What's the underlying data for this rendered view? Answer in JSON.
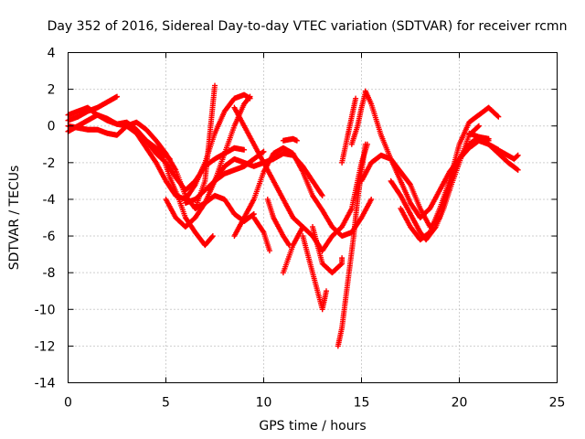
{
  "chart_data": {
    "type": "scatter",
    "title": "Day 352 of 2016, Sidereal Day-to-day VTEC variation (SDTVAR) for receiver rcmn",
    "xlabel": "GPS time / hours",
    "ylabel": "SDTVAR / TECUs",
    "xlim": [
      0,
      25
    ],
    "ylim": [
      -14,
      4
    ],
    "xticks": [
      "0",
      "5",
      "10",
      "15",
      "20",
      "25"
    ],
    "yticks": [
      "4",
      "2",
      "0",
      "-2",
      "-4",
      "-6",
      "-8",
      "-10",
      "-12",
      "-14"
    ],
    "grid": true,
    "marker": "+",
    "color": "#ff0000",
    "series": [
      {
        "points": [
          [
            0,
            0.6
          ],
          [
            0.5,
            0.8
          ],
          [
            1,
            1.0
          ],
          [
            1.5,
            0.6
          ],
          [
            2,
            0.4
          ],
          [
            2.5,
            0.1
          ],
          [
            3,
            0.0
          ],
          [
            3.5,
            -0.4
          ],
          [
            4,
            -1.2
          ],
          [
            4.5,
            -2.0
          ],
          [
            5,
            -3.0
          ],
          [
            5.5,
            -3.8
          ],
          [
            6,
            -4.0
          ],
          [
            6.5,
            -3.2
          ],
          [
            7,
            -2.0
          ],
          [
            7.5,
            -0.4
          ],
          [
            8,
            0.8
          ],
          [
            8.5,
            1.5
          ],
          [
            9,
            1.7
          ],
          [
            9.3,
            1.5
          ]
        ]
      },
      {
        "points": [
          [
            0,
            0.3
          ],
          [
            0.5,
            0.5
          ],
          [
            1,
            0.8
          ],
          [
            1.5,
            1.0
          ],
          [
            2,
            1.3
          ],
          [
            2.5,
            1.6
          ]
        ]
      },
      {
        "points": [
          [
            0,
            -0.3
          ],
          [
            0.5,
            0.0
          ],
          [
            1,
            0.3
          ],
          [
            1.5,
            0.6
          ],
          [
            2,
            0.3
          ],
          [
            2.5,
            0.1
          ],
          [
            3,
            0.2
          ],
          [
            3.5,
            -0.2
          ],
          [
            4,
            -0.8
          ],
          [
            4.5,
            -1.5
          ],
          [
            5,
            -2.0
          ],
          [
            5.5,
            -2.8
          ],
          [
            6,
            -3.5
          ],
          [
            6.5,
            -3.0
          ],
          [
            7,
            -2.2
          ],
          [
            7.5,
            -1.8
          ],
          [
            8,
            -1.5
          ],
          [
            8.5,
            -1.2
          ],
          [
            9,
            -1.3
          ]
        ]
      },
      {
        "points": [
          [
            0,
            0.0
          ],
          [
            0.5,
            -0.1
          ],
          [
            1,
            -0.2
          ],
          [
            1.5,
            -0.2
          ],
          [
            2,
            -0.4
          ],
          [
            2.5,
            -0.5
          ],
          [
            3,
            0.0
          ],
          [
            3.5,
            0.2
          ],
          [
            4,
            -0.2
          ],
          [
            4.5,
            -0.8
          ],
          [
            5,
            -1.5
          ],
          [
            5.5,
            -2.4
          ],
          [
            6,
            -3.8
          ],
          [
            6.5,
            -4.5
          ],
          [
            7,
            -4.2
          ],
          [
            7.5,
            -3.0
          ],
          [
            8,
            -1.5
          ],
          [
            8.5,
            0.0
          ],
          [
            9,
            1.2
          ],
          [
            9.3,
            1.6
          ]
        ]
      },
      {
        "points": [
          [
            4,
            -0.8
          ],
          [
            4.5,
            -1.2
          ],
          [
            5,
            -1.6
          ],
          [
            5.2,
            -1.8
          ]
        ]
      },
      {
        "points": [
          [
            4.2,
            -1.0
          ],
          [
            4.8,
            -1.5
          ],
          [
            5.2,
            -2.8
          ],
          [
            5.6,
            -3.8
          ],
          [
            6,
            -5.0
          ],
          [
            6.5,
            -5.8
          ],
          [
            7,
            -6.5
          ],
          [
            7.4,
            -6.0
          ]
        ]
      },
      {
        "points": [
          [
            5,
            -4.0
          ],
          [
            5.5,
            -5.0
          ],
          [
            6,
            -5.5
          ],
          [
            6.5,
            -5.0
          ],
          [
            7,
            -4.2
          ],
          [
            7.5,
            -3.8
          ],
          [
            8,
            -4.0
          ],
          [
            8.5,
            -4.8
          ],
          [
            9,
            -5.2
          ],
          [
            9.5,
            -4.8
          ]
        ]
      },
      {
        "points": [
          [
            6.5,
            -4.5
          ],
          [
            7,
            -3.0
          ],
          [
            7.5,
            2.2
          ]
        ]
      },
      {
        "points": [
          [
            7.2,
            -3.5
          ],
          [
            7.6,
            -2.8
          ],
          [
            8,
            -2.2
          ],
          [
            8.5,
            -1.8
          ],
          [
            9,
            -2.0
          ],
          [
            9.5,
            -2.2
          ],
          [
            10,
            -2.0
          ],
          [
            10.5,
            -1.8
          ],
          [
            11,
            -1.5
          ],
          [
            11.5,
            -1.6
          ],
          [
            12,
            -2.2
          ],
          [
            12.5,
            -3.0
          ],
          [
            13,
            -3.8
          ]
        ]
      },
      {
        "points": [
          [
            8.5,
            -6.0
          ],
          [
            9,
            -5.0
          ],
          [
            9.5,
            -4.0
          ],
          [
            10,
            -2.5
          ],
          [
            10.5,
            -1.5
          ],
          [
            11,
            -1.2
          ],
          [
            11.5,
            -1.5
          ],
          [
            12,
            -2.5
          ],
          [
            12.5,
            -3.8
          ],
          [
            13,
            -4.6
          ],
          [
            13.5,
            -5.5
          ],
          [
            14,
            -6.0
          ],
          [
            14.5,
            -5.8
          ],
          [
            15,
            -5.0
          ],
          [
            15.5,
            -4.0
          ]
        ]
      },
      {
        "points": [
          [
            8.5,
            1.0
          ],
          [
            9,
            0.0
          ],
          [
            9.5,
            -1.0
          ],
          [
            10,
            -2.0
          ],
          [
            10.5,
            -3.0
          ],
          [
            11,
            -4.0
          ],
          [
            11.5,
            -5.0
          ],
          [
            12,
            -5.5
          ]
        ]
      },
      {
        "points": [
          [
            10.2,
            -4.0
          ],
          [
            10.5,
            -5.0
          ],
          [
            11,
            -6.0
          ],
          [
            11.3,
            -6.5
          ]
        ]
      },
      {
        "points": [
          [
            9.5,
            -5.0
          ],
          [
            10,
            -5.8
          ],
          [
            10.3,
            -6.8
          ]
        ]
      },
      {
        "points": [
          [
            11,
            -0.8
          ],
          [
            11.5,
            -0.7
          ],
          [
            11.7,
            -0.8
          ]
        ]
      },
      {
        "points": [
          [
            11,
            -8.0
          ],
          [
            11.5,
            -6.5
          ],
          [
            12,
            -5.5
          ],
          [
            12.5,
            -6.0
          ],
          [
            13,
            -6.8
          ],
          [
            13.5,
            -6.0
          ],
          [
            14,
            -5.5
          ],
          [
            14.5,
            -4.5
          ],
          [
            15,
            -2.0
          ],
          [
            15.3,
            -1.0
          ]
        ]
      },
      {
        "points": [
          [
            12,
            -6.0
          ],
          [
            12.5,
            -8.0
          ],
          [
            13,
            -10.0
          ],
          [
            13.2,
            -9.0
          ]
        ]
      },
      {
        "points": [
          [
            12.5,
            -5.5
          ],
          [
            13,
            -7.5
          ],
          [
            13.5,
            -8.0
          ],
          [
            14,
            -7.5
          ],
          [
            14,
            -7.2
          ]
        ]
      },
      {
        "points": [
          [
            13.8,
            -12.0
          ],
          [
            14,
            -11.0
          ],
          [
            14.3,
            -8.5
          ],
          [
            14.6,
            -6.0
          ],
          [
            14.8,
            -4.0
          ],
          [
            15,
            -2.5
          ],
          [
            15.2,
            -1.0
          ]
        ]
      },
      {
        "points": [
          [
            14,
            -2.0
          ],
          [
            14.3,
            -0.5
          ],
          [
            14.5,
            0.5
          ],
          [
            14.7,
            1.5
          ]
        ]
      },
      {
        "points": [
          [
            14.5,
            -1.0
          ],
          [
            14.8,
            0.0
          ],
          [
            15,
            1.0
          ],
          [
            15.2,
            1.8
          ]
        ]
      },
      {
        "points": [
          [
            15.2,
            1.9
          ],
          [
            15.5,
            1.2
          ],
          [
            16,
            -0.5
          ],
          [
            16.5,
            -1.8
          ],
          [
            17,
            -3.0
          ],
          [
            17.5,
            -4.2
          ],
          [
            18,
            -5.0
          ],
          [
            18.5,
            -4.5
          ],
          [
            19,
            -3.5
          ],
          [
            19.5,
            -2.5
          ],
          [
            20,
            -1.8
          ],
          [
            20.5,
            -1.2
          ],
          [
            21,
            -0.8
          ],
          [
            21.5,
            -1.0
          ],
          [
            22,
            -1.3
          ]
        ]
      },
      {
        "points": [
          [
            15,
            -3.0
          ],
          [
            15.5,
            -2.0
          ],
          [
            16,
            -1.6
          ],
          [
            16.5,
            -1.8
          ],
          [
            17,
            -2.5
          ],
          [
            17.5,
            -3.2
          ],
          [
            18,
            -4.5
          ],
          [
            18.5,
            -5.5
          ],
          [
            19,
            -5.0
          ],
          [
            19.5,
            -3.0
          ],
          [
            20,
            -1.0
          ],
          [
            20.5,
            0.2
          ],
          [
            21,
            0.6
          ],
          [
            21.5,
            1.0
          ],
          [
            22,
            0.5
          ]
        ]
      },
      {
        "points": [
          [
            16.5,
            -3.0
          ],
          [
            17,
            -3.8
          ],
          [
            17.5,
            -4.8
          ],
          [
            18,
            -5.8
          ],
          [
            18.3,
            -6.2
          ],
          [
            18.8,
            -5.5
          ],
          [
            19.2,
            -4.5
          ],
          [
            19.5,
            -3.5
          ]
        ]
      },
      {
        "points": [
          [
            17,
            -4.5
          ],
          [
            17.5,
            -5.5
          ],
          [
            18,
            -6.2
          ],
          [
            18.5,
            -5.8
          ],
          [
            19,
            -4.5
          ],
          [
            19.5,
            -3.0
          ],
          [
            20,
            -1.8
          ],
          [
            20.5,
            -1.0
          ],
          [
            21,
            -0.6
          ],
          [
            21.5,
            -0.7
          ]
        ]
      },
      {
        "points": [
          [
            19.5,
            -3.5
          ],
          [
            20,
            -2.0
          ],
          [
            20.5,
            -0.5
          ],
          [
            21,
            0.0
          ]
        ]
      },
      {
        "points": [
          [
            20.5,
            -0.4
          ],
          [
            21,
            -0.6
          ],
          [
            21.5,
            -0.8
          ]
        ]
      },
      {
        "points": [
          [
            21.5,
            -1.0
          ],
          [
            22,
            -1.5
          ],
          [
            22.5,
            -2.0
          ],
          [
            23,
            -2.4
          ]
        ]
      },
      {
        "points": [
          [
            21.8,
            -1.2
          ],
          [
            22.3,
            -1.5
          ],
          [
            22.8,
            -1.8
          ],
          [
            23,
            -1.6
          ]
        ]
      },
      {
        "points": [
          [
            6,
            -4.2
          ],
          [
            6.5,
            -4.0
          ],
          [
            7,
            -3.5
          ],
          [
            7.5,
            -3.0
          ],
          [
            8,
            -2.6
          ],
          [
            8.5,
            -2.4
          ],
          [
            9,
            -2.2
          ],
          [
            9.5,
            -1.8
          ],
          [
            10,
            -1.4
          ]
        ]
      }
    ]
  }
}
